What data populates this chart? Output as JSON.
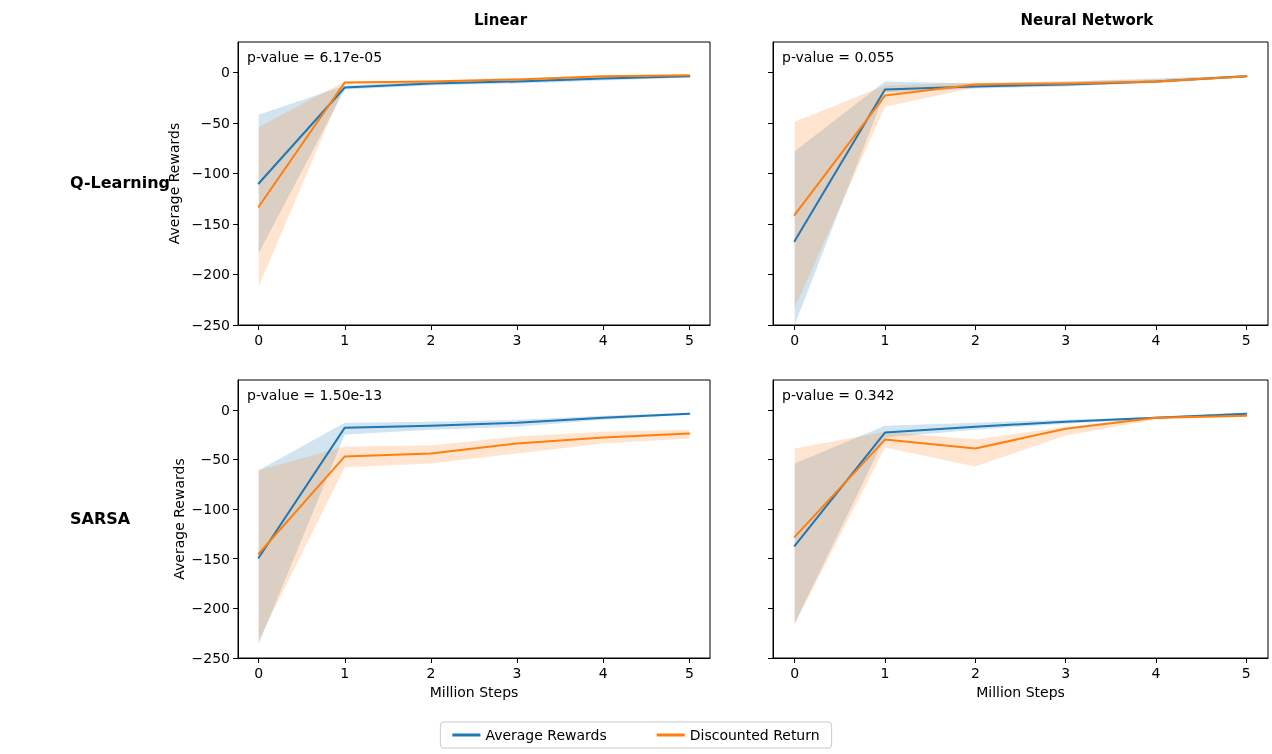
{
  "chart_data": [
    {
      "type": "line",
      "title": "Linear",
      "ylabel": "Average Rewards",
      "annotations": [
        "p-value = 6.17e-05",
        "Q-Learning"
      ],
      "x": [
        0,
        1,
        2,
        3,
        4,
        5
      ],
      "xlim": [
        -0.24,
        5.24
      ],
      "xticks": [
        0,
        1,
        2,
        3,
        4,
        5
      ],
      "ylim": [
        -250,
        30
      ],
      "yticks": [
        -250,
        -200,
        -150,
        -100,
        -50,
        0
      ],
      "grid": false,
      "legend": false,
      "marker": "none",
      "line_style": "solid",
      "series": [
        {
          "color": "#1f77b4",
          "values": [
            -110,
            -15,
            -11,
            -9,
            -6,
            -4
          ],
          "lower": [
            -179,
            -17,
            -13,
            -11,
            -8,
            -5
          ],
          "upper": [
            -42,
            -13,
            -9,
            -7,
            -4,
            -3
          ]
        },
        {
          "color": "#ff7f0e",
          "values": [
            -133,
            -10,
            -9,
            -7,
            -4,
            -3
          ],
          "lower": [
            -212,
            -12,
            -11,
            -9,
            -6,
            -4
          ],
          "upper": [
            -54,
            -9,
            -8,
            -6,
            -3,
            -2
          ]
        }
      ]
    },
    {
      "type": "line",
      "title": "Neural Network",
      "annotations": [
        "p-value = 0.055"
      ],
      "x": [
        0,
        1,
        2,
        3,
        4,
        5
      ],
      "xlim": [
        -0.24,
        5.24
      ],
      "xticks": [
        0,
        1,
        2,
        3,
        4,
        5
      ],
      "ylim": [
        -250,
        30
      ],
      "yticks": [
        -250,
        -200,
        -150,
        -100,
        -50,
        0
      ],
      "tick_labels": "x",
      "grid": false,
      "legend": false,
      "marker": "none",
      "line_style": "solid",
      "series": [
        {
          "color": "#1f77b4",
          "values": [
            -167,
            -17,
            -14,
            -12,
            -9,
            -4
          ],
          "lower": [
            -250,
            -20,
            -16,
            -14,
            -10,
            -5
          ],
          "upper": [
            -78,
            -9,
            -11,
            -9,
            -6,
            -3
          ]
        },
        {
          "color": "#ff7f0e",
          "values": [
            -141,
            -23,
            -12,
            -11,
            -9,
            -4
          ],
          "lower": [
            -233,
            -34,
            -15,
            -13,
            -11,
            -5
          ],
          "upper": [
            -49,
            -13,
            -10,
            -9,
            -7,
            -3
          ]
        }
      ]
    },
    {
      "type": "line",
      "xlabel": "Million Steps",
      "ylabel": "Average Rewards",
      "annotations": [
        "p-value = 1.50e-13",
        "SARSA"
      ],
      "x": [
        0,
        1,
        2,
        3,
        4,
        5
      ],
      "xlim": [
        -0.24,
        5.24
      ],
      "xticks": [
        0,
        1,
        2,
        3,
        4,
        5
      ],
      "ylim": [
        -250,
        30
      ],
      "yticks": [
        -250,
        -200,
        -150,
        -100,
        -50,
        0
      ],
      "grid": false,
      "legend": "bottom",
      "marker": "none",
      "line_style": "solid",
      "series": [
        {
          "name": "Average Rewards",
          "color": "#1f77b4",
          "values": [
            -149,
            -18,
            -16,
            -13,
            -8,
            -4
          ],
          "lower": [
            -236,
            -25,
            -20,
            -17,
            -10,
            -5
          ],
          "upper": [
            -61,
            -13,
            -12,
            -10,
            -6,
            -3
          ]
        },
        {
          "name": "Discounted Return",
          "color": "#ff7f0e",
          "values": [
            -145,
            -47,
            -44,
            -34,
            -28,
            -24
          ],
          "lower": [
            -232,
            -58,
            -54,
            -44,
            -34,
            -29
          ],
          "upper": [
            -61,
            -37,
            -36,
            -27,
            -22,
            -20
          ]
        }
      ]
    },
    {
      "type": "line",
      "xlabel": "Million Steps",
      "annotations": [
        "p-value = 0.342"
      ],
      "x": [
        0,
        1,
        2,
        3,
        4,
        5
      ],
      "xlim": [
        -0.24,
        5.24
      ],
      "xticks": [
        0,
        1,
        2,
        3,
        4,
        5
      ],
      "ylim": [
        -250,
        30
      ],
      "yticks": [
        -250,
        -200,
        -150,
        -100,
        -50,
        0
      ],
      "tick_labels": "x",
      "grid": false,
      "legend": false,
      "marker": "none",
      "line_style": "solid",
      "series": [
        {
          "color": "#1f77b4",
          "values": [
            -137,
            -23,
            -17,
            -12,
            -8,
            -4
          ],
          "lower": [
            -215,
            -28,
            -20,
            -14,
            -9,
            -5
          ],
          "upper": [
            -54,
            -16,
            -13,
            -10,
            -7,
            -3
          ]
        },
        {
          "color": "#ff7f0e",
          "values": [
            -128,
            -30,
            -39,
            -19,
            -8,
            -6
          ],
          "lower": [
            -216,
            -38,
            -57,
            -26,
            -10,
            -7
          ],
          "upper": [
            -39,
            -22,
            -30,
            -17,
            -7,
            -5
          ]
        }
      ]
    }
  ]
}
